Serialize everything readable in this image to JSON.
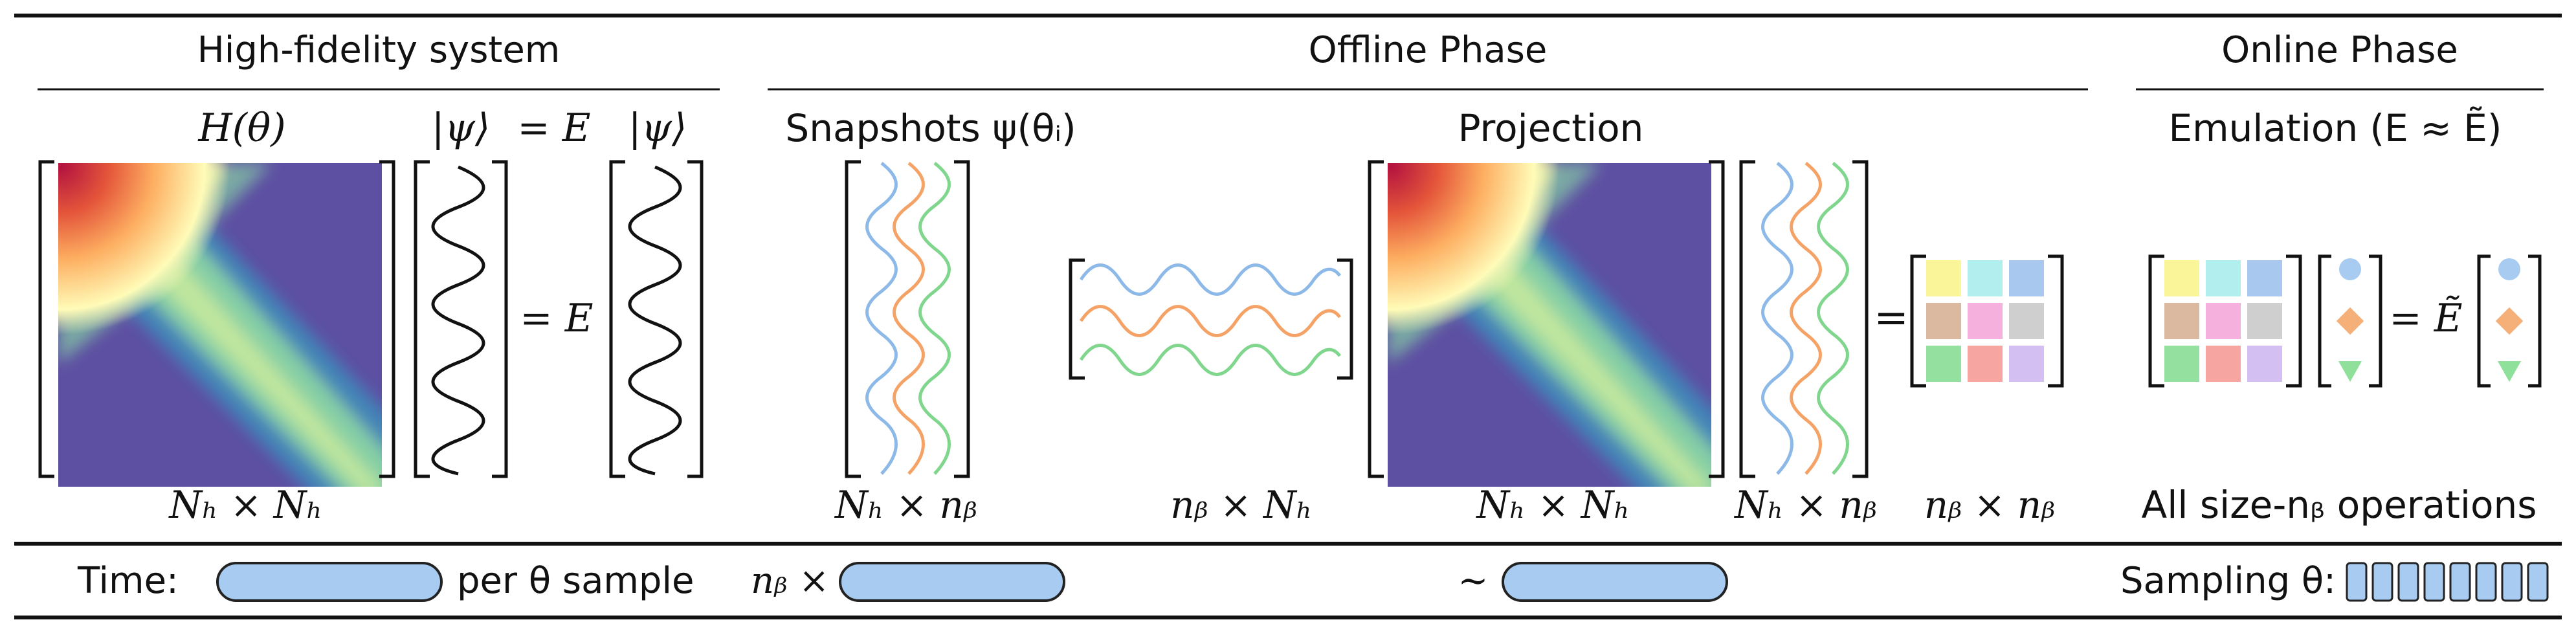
{
  "sections": {
    "high_fidelity": "High-fidelity system",
    "offline": "Offline Phase",
    "online": "Online Phase"
  },
  "labels": {
    "hamiltonian": "H(θ)",
    "psi_a": "|ψ⟩",
    "eq_e_top": "= E",
    "psi_b": "|ψ⟩",
    "eq_e_mid": "= E",
    "snapshots": "Snapshots ψ(θᵢ)",
    "projection": "Projection",
    "emulation": "Emulation (E ≈ Ẽ)",
    "eq_mid": "=",
    "eq_tilde_e": "= Ẽ",
    "all_ops": "All size-nᵦ operations"
  },
  "dims": {
    "h_dim": "Nₕ × Nₕ",
    "snap_dim": "Nₕ × nᵦ",
    "proj_left_dim": "nᵦ × Nₕ",
    "proj_h_dim": "Nₕ × Nₕ",
    "proj_right_dim": "Nₕ × nᵦ",
    "reduced_dim": "nᵦ × nᵦ"
  },
  "timeline": {
    "time_label": "Time:",
    "per_sample": "per θ sample",
    "nb_times": "nᵦ ×",
    "approx": "∼",
    "sampling": "Sampling θ:",
    "sampling_blocks": 8
  },
  "colors": {
    "snapshot_1": "#8db9e8",
    "snapshot_2": "#f5a267",
    "snapshot_3": "#7fd68c",
    "pill_fill": "#a8cbf2",
    "circle": "#a8cbf2",
    "diamond": "#f5b07a",
    "triangle": "#8ee09a",
    "reduced_matrix": [
      "#fbf59a",
      "#b3eeee",
      "#a8c8f0",
      "#dbb9a0",
      "#f6b0de",
      "#cfcfcf",
      "#93e09f",
      "#f7a5a0",
      "#d3bff2"
    ]
  }
}
